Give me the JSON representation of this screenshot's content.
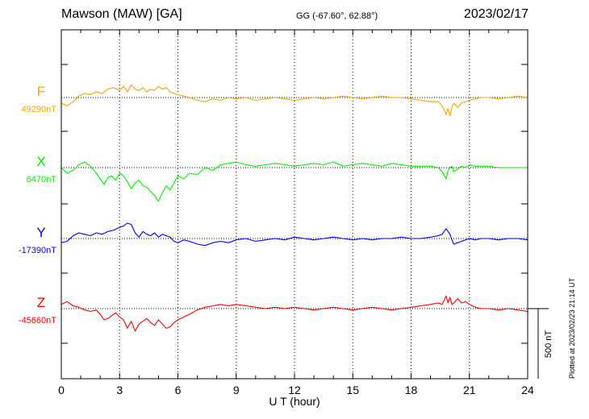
{
  "header": {
    "title": "Mawson (MAW)  [GA]",
    "coords": "GG (-67.60°,  62.88°)",
    "date": "2023/02/17"
  },
  "credit": "Plotted at 2023/02/23 21:14 UT",
  "chart_data": {
    "type": "line",
    "xlabel": "U T (hour)",
    "xlim": [
      0,
      24
    ],
    "xticks": [
      0,
      3,
      6,
      9,
      12,
      15,
      18,
      21,
      24
    ],
    "xtick_labels": [
      "0",
      "3",
      "6",
      "9",
      "12",
      "15",
      "18",
      "21",
      "24"
    ],
    "scale_bar_label": "500 nT",
    "scale_bar_nT": 500,
    "grid": true,
    "series": [
      {
        "name": "F",
        "baseline_label": "49290nT",
        "baseline_nT": 49290,
        "color": "#f0a800",
        "hours": [
          0,
          0.3,
          0.6,
          0.9,
          1.2,
          1.5,
          1.8,
          2.1,
          2.4,
          2.7,
          3.0,
          3.2,
          3.4,
          3.6,
          3.8,
          4.0,
          4.2,
          4.4,
          4.6,
          4.8,
          5.0,
          5.2,
          5.4,
          5.6,
          5.8,
          6.0,
          6.3,
          6.6,
          7.0,
          7.4,
          7.8,
          8.2,
          8.6,
          9.0,
          9.5,
          10.0,
          10.5,
          11.0,
          11.5,
          12.0,
          12.5,
          13.0,
          13.5,
          14.0,
          14.5,
          15.0,
          15.5,
          16.0,
          16.5,
          17.0,
          17.5,
          18.0,
          18.5,
          19.0,
          19.4,
          19.6,
          19.8,
          19.9,
          20.0,
          20.1,
          20.2,
          20.4,
          20.6,
          20.8,
          21.0,
          21.3,
          21.6,
          22.0,
          22.5,
          23.0,
          23.5,
          24.0
        ],
        "values_nT": [
          -40,
          -60,
          -30,
          10,
          30,
          20,
          40,
          30,
          60,
          70,
          50,
          80,
          40,
          90,
          60,
          50,
          70,
          40,
          60,
          50,
          80,
          60,
          70,
          40,
          30,
          20,
          10,
          0,
          -20,
          -30,
          -10,
          -20,
          0,
          -10,
          0,
          -20,
          -10,
          0,
          -10,
          -20,
          -10,
          0,
          -10,
          0,
          10,
          0,
          -10,
          0,
          10,
          0,
          0,
          -10,
          -20,
          -30,
          -30,
          -60,
          -120,
          -80,
          -130,
          -70,
          -40,
          -70,
          -40,
          -30,
          -20,
          -10,
          0,
          0,
          -10,
          0,
          10,
          0
        ]
      },
      {
        "name": "X",
        "baseline_label": "6470nT",
        "baseline_nT": 6470,
        "color": "#00ee00",
        "hours": [
          0,
          0.3,
          0.6,
          0.9,
          1.2,
          1.5,
          1.8,
          2.0,
          2.2,
          2.4,
          2.6,
          2.8,
          3.0,
          3.2,
          3.4,
          3.6,
          3.8,
          4.0,
          4.2,
          4.4,
          4.6,
          4.8,
          5.0,
          5.2,
          5.4,
          5.6,
          5.8,
          6.0,
          6.3,
          6.6,
          7.0,
          7.4,
          7.8,
          8.2,
          8.6,
          9.0,
          9.5,
          10.0,
          10.5,
          11.0,
          11.5,
          12.0,
          12.5,
          13.0,
          13.5,
          14.0,
          14.5,
          15.0,
          15.5,
          16.0,
          16.5,
          17.0,
          17.5,
          18.0,
          18.5,
          19.0,
          19.4,
          19.6,
          19.8,
          19.9,
          20.0,
          20.1,
          20.2,
          20.4,
          20.6,
          20.8,
          21.0,
          21.3,
          21.6,
          22.0,
          22.5,
          23.0,
          23.5,
          24.0
        ],
        "values_nT": [
          0,
          -40,
          -20,
          20,
          40,
          10,
          -40,
          -80,
          -120,
          -70,
          -60,
          -90,
          -40,
          -60,
          -100,
          -150,
          -110,
          -90,
          -130,
          -140,
          -170,
          -200,
          -240,
          -180,
          -130,
          -160,
          -110,
          -60,
          -80,
          -40,
          -50,
          0,
          -20,
          20,
          30,
          40,
          20,
          10,
          20,
          30,
          20,
          10,
          20,
          30,
          20,
          40,
          10,
          20,
          30,
          20,
          10,
          30,
          20,
          10,
          10,
          10,
          0,
          -30,
          -80,
          -20,
          0,
          10,
          -30,
          -10,
          10,
          0,
          20,
          10,
          10,
          10,
          0,
          0,
          0,
          0
        ]
      },
      {
        "name": "Y",
        "baseline_label": "-17390nT",
        "baseline_nT": -17390,
        "color": "#0000ee",
        "hours": [
          0,
          0.3,
          0.6,
          0.9,
          1.2,
          1.5,
          1.8,
          2.1,
          2.4,
          2.7,
          3.0,
          3.2,
          3.4,
          3.6,
          3.8,
          4.0,
          4.2,
          4.4,
          4.6,
          4.8,
          5.0,
          5.2,
          5.4,
          5.6,
          5.8,
          6.0,
          6.3,
          6.6,
          7.0,
          7.4,
          7.8,
          8.2,
          8.6,
          9.0,
          9.5,
          10.0,
          10.5,
          11.0,
          11.5,
          12.0,
          12.5,
          13.0,
          13.5,
          14.0,
          14.5,
          15.0,
          15.5,
          16.0,
          16.5,
          17.0,
          17.5,
          18.0,
          18.5,
          19.0,
          19.4,
          19.6,
          19.8,
          19.9,
          20.0,
          20.1,
          20.2,
          20.4,
          20.6,
          20.8,
          21.0,
          21.3,
          21.6,
          22.0,
          22.5,
          23.0,
          23.5,
          24.0
        ],
        "values_nT": [
          -30,
          -20,
          20,
          40,
          30,
          20,
          40,
          30,
          50,
          60,
          80,
          90,
          110,
          100,
          40,
          10,
          50,
          30,
          20,
          40,
          10,
          30,
          20,
          10,
          -20,
          -30,
          -10,
          -20,
          -40,
          -50,
          -30,
          -20,
          -30,
          -10,
          0,
          -20,
          -10,
          0,
          -10,
          10,
          0,
          -10,
          0,
          10,
          0,
          -10,
          0,
          -10,
          0,
          0,
          10,
          0,
          0,
          10,
          20,
          30,
          70,
          50,
          30,
          -10,
          -40,
          -30,
          -20,
          -10,
          0,
          -10,
          0,
          0,
          -10,
          0,
          0,
          -10
        ]
      },
      {
        "name": "Z",
        "baseline_label": "-45660nT",
        "baseline_nT": -45660,
        "color": "#ee0000",
        "hours": [
          0,
          0.3,
          0.6,
          0.9,
          1.2,
          1.5,
          1.8,
          2.0,
          2.2,
          2.4,
          2.6,
          2.8,
          3.0,
          3.2,
          3.4,
          3.6,
          3.8,
          4.0,
          4.2,
          4.4,
          4.6,
          4.8,
          5.0,
          5.2,
          5.4,
          5.6,
          5.8,
          6.0,
          6.3,
          6.6,
          7.0,
          7.4,
          7.8,
          8.2,
          8.6,
          9.0,
          9.5,
          10.0,
          10.5,
          11.0,
          11.5,
          12.0,
          12.5,
          13.0,
          13.5,
          14.0,
          14.5,
          15.0,
          15.5,
          16.0,
          16.5,
          17.0,
          17.5,
          18.0,
          18.5,
          19.0,
          19.4,
          19.6,
          19.8,
          19.9,
          20.0,
          20.1,
          20.2,
          20.4,
          20.6,
          20.8,
          21.0,
          21.3,
          21.6,
          22.0,
          22.5,
          23.0,
          23.5,
          24.0
        ],
        "values_nT": [
          30,
          50,
          20,
          10,
          -10,
          -20,
          -10,
          -40,
          -80,
          -70,
          -50,
          -30,
          -60,
          -80,
          -140,
          -90,
          -160,
          -110,
          -90,
          -70,
          -100,
          -120,
          -80,
          -110,
          -140,
          -130,
          -100,
          -80,
          -60,
          -40,
          -10,
          10,
          20,
          30,
          20,
          30,
          20,
          10,
          0,
          10,
          0,
          10,
          0,
          -10,
          0,
          10,
          0,
          -10,
          0,
          10,
          0,
          -10,
          0,
          10,
          20,
          30,
          40,
          30,
          90,
          40,
          80,
          30,
          40,
          70,
          40,
          50,
          30,
          10,
          0,
          0,
          -10,
          0,
          -10,
          -20
        ]
      }
    ]
  }
}
